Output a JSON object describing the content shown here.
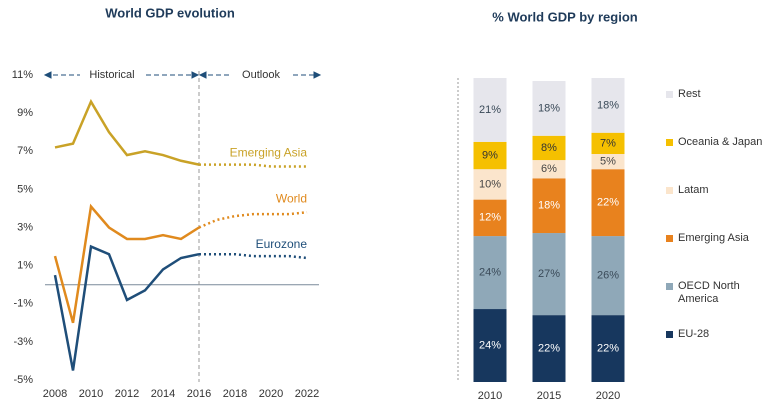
{
  "chart_data": [
    {
      "type": "line",
      "title": "World GDP evolution",
      "annotations": [
        "Historical",
        "Outlook"
      ],
      "x": [
        2008,
        2009,
        2010,
        2011,
        2012,
        2013,
        2014,
        2015,
        2016,
        2017,
        2018,
        2019,
        2020,
        2021,
        2022
      ],
      "vline": 2016,
      "series": [
        {
          "name": "Emerging Asia",
          "color": "#c9a227",
          "values": [
            7.2,
            7.4,
            9.6,
            8.0,
            6.8,
            7.0,
            6.8,
            6.5,
            6.3,
            6.3,
            6.3,
            6.3,
            6.2,
            6.2,
            6.2
          ]
        },
        {
          "name": "World",
          "color": "#e08a1e",
          "values": [
            1.5,
            -2.0,
            4.1,
            3.0,
            2.4,
            2.4,
            2.6,
            2.4,
            3.0,
            3.4,
            3.6,
            3.7,
            3.7,
            3.7,
            3.8
          ]
        },
        {
          "name": "Eurozone",
          "color": "#1f4e79",
          "values": [
            0.5,
            -4.5,
            2.0,
            1.6,
            -0.8,
            -0.3,
            0.8,
            1.4,
            1.6,
            1.6,
            1.6,
            1.5,
            1.5,
            1.5,
            1.4
          ]
        }
      ],
      "xlim": [
        2008,
        2022
      ],
      "xticks": [
        2008,
        2010,
        2012,
        2014,
        2016,
        2018,
        2020,
        2022
      ],
      "ylim": [
        -5,
        11
      ],
      "yticks": [
        {
          "value": 11,
          "label": "11%"
        },
        {
          "value": 9,
          "label": "9%"
        },
        {
          "value": 7,
          "label": "7%"
        },
        {
          "value": 5,
          "label": "5%"
        },
        {
          "value": 3,
          "label": "3%"
        },
        {
          "value": 1,
          "label": "1%"
        },
        {
          "value": -1,
          "label": "-1%"
        },
        {
          "value": -3,
          "label": "-3%"
        },
        {
          "value": -5,
          "label": "-5%"
        }
      ],
      "zero_line": true
    },
    {
      "type": "stacked_bar",
      "title": "% World GDP by region",
      "categories": [
        "2010",
        "2015",
        "2020"
      ],
      "ylim": [
        0,
        100
      ],
      "series": [
        {
          "name": "EU-28",
          "color": "#17375e",
          "label_color": "#ffffff",
          "values": [
            24,
            22,
            22
          ],
          "value_labels": [
            "24%",
            "22%",
            "22%"
          ]
        },
        {
          "name": "OECD North America",
          "color": "#8fa8b8",
          "label_color": "#3a4a58",
          "values": [
            24,
            27,
            26
          ],
          "value_labels": [
            "24%",
            "27%",
            "26%"
          ]
        },
        {
          "name": "Emerging Asia",
          "color": "#e8821e",
          "label_color": "#ffffff",
          "values": [
            12,
            18,
            22
          ],
          "value_labels": [
            "12%",
            "18%",
            "22%"
          ]
        },
        {
          "name": "Latam",
          "color": "#fbe5cc",
          "label_color": "#444444",
          "values": [
            10,
            6,
            5
          ],
          "value_labels": [
            "10%",
            "6%",
            "5%"
          ]
        },
        {
          "name": "Oceania & Japan",
          "color": "#f5c000",
          "label_color": "#333333",
          "values": [
            9,
            8,
            7
          ],
          "value_labels": [
            "9%",
            "8%",
            "7%"
          ]
        },
        {
          "name": "Rest",
          "color": "#e6e6ec",
          "label_color": "#3a4a58",
          "values": [
            21,
            18,
            18
          ],
          "value_labels": [
            "21%",
            "18%",
            "18%"
          ]
        }
      ]
    }
  ]
}
